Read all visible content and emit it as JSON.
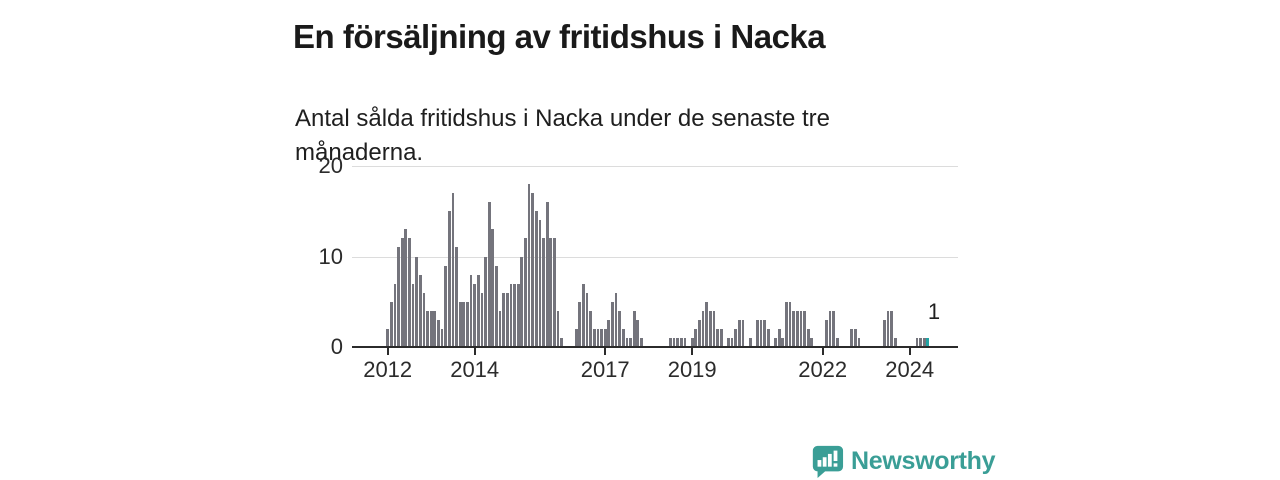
{
  "title": "En försäljning av fritidshus i Nacka",
  "subtitle": "Antal sålda fritidshus i Nacka under de senaste tre månaderna.",
  "annotation": {
    "label": "1"
  },
  "logo": {
    "text": "Newsworthy"
  },
  "colors": {
    "bar": "#74747c",
    "highlight": "#21a3a3",
    "brand_teal": "#3a9e96",
    "grid": "#dcdcdc",
    "axis": "#2b2b2b"
  },
  "chart_data": {
    "type": "bar",
    "title": "En försäljning av fritidshus i Nacka",
    "subtitle": "Antal sålda fritidshus i Nacka under de senaste tre månaderna.",
    "ylabel": "",
    "xlabel": "",
    "x_start": "2012-01",
    "frequency": "monthly",
    "ylim": [
      0,
      20
    ],
    "yticks": [
      0,
      10,
      20
    ],
    "xtick_years": [
      2012,
      2014,
      2017,
      2019,
      2022,
      2024
    ],
    "grid": "horizontal",
    "legend": "none",
    "highlight_last_bar": true,
    "last_value_label": "1",
    "values": [
      2,
      5,
      7,
      11,
      12,
      13,
      12,
      7,
      10,
      8,
      6,
      4,
      4,
      4,
      3,
      2,
      9,
      15,
      17,
      11,
      5,
      5,
      5,
      8,
      7,
      8,
      6,
      10,
      16,
      13,
      9,
      4,
      6,
      6,
      7,
      7,
      7,
      10,
      12,
      18,
      17,
      15,
      14,
      12,
      16,
      12,
      12,
      4,
      1,
      0,
      0,
      0,
      2,
      5,
      7,
      6,
      4,
      2,
      2,
      2,
      2,
      3,
      5,
      6,
      4,
      2,
      1,
      1,
      4,
      3,
      1,
      0,
      0,
      0,
      0,
      0,
      0,
      0,
      1,
      1,
      1,
      1,
      1,
      0,
      1,
      2,
      3,
      4,
      5,
      4,
      4,
      2,
      2,
      0,
      1,
      1,
      2,
      3,
      3,
      0,
      1,
      0,
      3,
      3,
      3,
      2,
      0,
      1,
      2,
      1,
      5,
      5,
      4,
      4,
      4,
      4,
      2,
      1,
      0,
      0,
      0,
      3,
      4,
      4,
      1,
      0,
      0,
      0,
      2,
      2,
      1,
      0,
      0,
      0,
      0,
      0,
      0,
      3,
      4,
      4,
      1,
      0,
      0,
      0,
      0,
      0,
      1,
      1,
      1,
      1
    ]
  }
}
